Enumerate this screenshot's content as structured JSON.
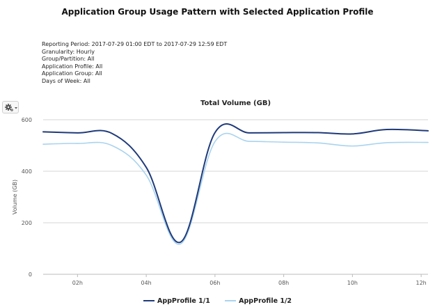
{
  "report": {
    "title": "Application Group Usage Pattern with Selected Application Profile",
    "meta": [
      "Reporting Period: 2017-07-29 01:00 EDT to 2017-07-29 12:59 EDT",
      "Granularity: Hourly",
      "Group/Partition: All",
      "Application Profile: All",
      "Application Group: All",
      "Days of Week: All"
    ]
  },
  "toolbar": {
    "gear_icon": "gear-icon"
  },
  "chart_data": {
    "type": "line",
    "title": "Total Volume (GB)",
    "xlabel": "",
    "ylabel": "Volume (GB)",
    "x_ticks": [
      "02h",
      "04h",
      "06h",
      "08h",
      "10h",
      "12h"
    ],
    "x_tick_values": [
      2,
      4,
      6,
      8,
      10,
      12
    ],
    "xlim": [
      1,
      12.2
    ],
    "y_ticks": [
      "0",
      "200",
      "400",
      "600"
    ],
    "y_tick_values": [
      0,
      200,
      400,
      600
    ],
    "ylim": [
      0,
      600
    ],
    "grid": true,
    "legend_position": "bottom",
    "series": [
      {
        "name": "AppProfile 1/1",
        "color": "#1f3a7a",
        "x": [
          1,
          2,
          3,
          4,
          5,
          6,
          7,
          8,
          9,
          10,
          11,
          12.2
        ],
        "values": [
          553,
          549,
          547,
          415,
          125,
          550,
          549,
          550,
          550,
          545,
          562,
          557
        ]
      },
      {
        "name": "AppProfile 1/2",
        "color": "#a9d3ef",
        "x": [
          1,
          2,
          3,
          4,
          5,
          6,
          7,
          8,
          9,
          10,
          11,
          12.2
        ],
        "values": [
          505,
          508,
          500,
          385,
          118,
          515,
          516,
          513,
          510,
          498,
          511,
          512
        ]
      }
    ]
  }
}
